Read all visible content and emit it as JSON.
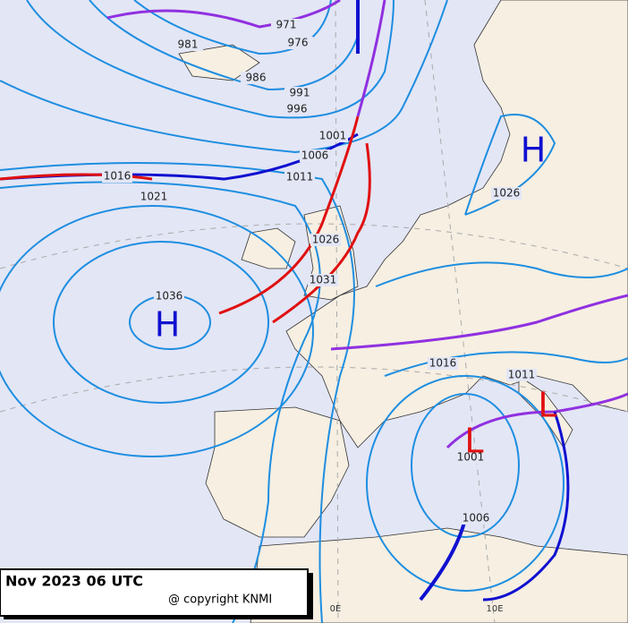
{
  "isobar_labels": [
    971,
    976,
    981,
    986,
    991,
    996,
    1001,
    1006,
    1011,
    1016,
    1021,
    1026,
    1031,
    1036,
    1026,
    1016,
    1011,
    1001,
    1006
  ],
  "pressure_centers": [
    "H",
    "H",
    "L",
    "L"
  ],
  "longitude_labels": [
    "0E",
    "10E"
  ],
  "caption": {
    "title": "Nov 2023 06 UTC",
    "copyright": "@ copyright KNMI"
  }
}
